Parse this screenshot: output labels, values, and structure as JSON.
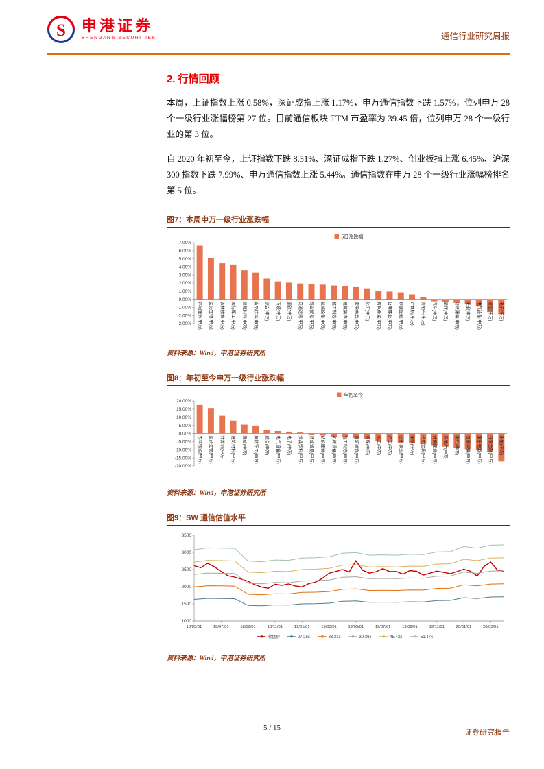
{
  "header": {
    "brand_cn": "申港证券",
    "brand_en": "SHENGANG SECURITIES",
    "report_type": "通信行业研究周报"
  },
  "section_title": "2. 行情回顾",
  "paragraphs": {
    "p1": "本周，上证指数上涨 0.58%，深证成指上涨 1.17%，申万通信指数下跌 1.57%，位列申万 28 个一级行业涨幅榜第 27 位。目前通信板块 TTM 市盈率为 39.45 倍，位列申万 28 个一级行业的第 3 位。",
    "p2": "自 2020 年初至今，上证指数下跌 8.31%、深证成指下跌 1.27%、创业板指上涨 6.45%、沪深 300 指数下跌 7.99%、申万通信指数上涨 5.44%。通信指数在申万 28 个一级行业涨幅榜排名第 5 位。"
  },
  "figures": {
    "f7": {
      "title": "图7：本周申万一级行业涨跌幅",
      "source": "资料来源：Wind，申港证券研究所"
    },
    "f8": {
      "title": "图8：年初至今申万一级行业涨跌幅",
      "source": "资料来源：Wind，申港证券研究所"
    },
    "f9": {
      "title": "图9：SW 通信估值水平",
      "source": "资料来源：Wind，申港证券研究所"
    }
  },
  "footer": {
    "page_number": "5 / 15",
    "report_label": "证券研究报告"
  },
  "colors": {
    "brand_red": "#E60012",
    "rule_orange": "#E36C09",
    "title_maroon": "#8F3A16",
    "section_red": "#E60000",
    "bar_orange": "#E7744E",
    "underline_red": "#C00000"
  },
  "chart_data": [
    {
      "type": "bar",
      "title": "本周申万一级行业涨跌幅",
      "legend": "5日涨跌幅",
      "bar_color": "#E7744E",
      "ylim": [
        -3,
        7
      ],
      "ytick_step": 1,
      "unit": "percent",
      "categories": [
        "休闲服务(申万)",
        "医药生物(申万)",
        "农林牧渔(申万)",
        "国防军工(申万)",
        "建筑材料(申万)",
        "食品饮料(申万)",
        "综合(申万)",
        "传媒(申万)",
        "钢铁(申万)",
        "交通运输(申万)",
        "商业贸易(申万)",
        "机械设备(申万)",
        "轻工制造(申万)",
        "建筑装饰(申万)",
        "家用电器(申万)",
        "化工(申万)",
        "有色金属(申万)",
        "公用事业(申万)",
        "非银金融(申万)",
        "计算机(申万)",
        "房地产(申万)",
        "汽车(申万)",
        "银行(申万)",
        "纺织服装(申万)",
        "采掘(申万)",
        "电气设备(申万)",
        "通信(申万)",
        "电子(申万)"
      ],
      "values": [
        6.62,
        5.1,
        4.45,
        4.3,
        3.6,
        3.3,
        2.55,
        2.2,
        2.05,
        1.95,
        1.9,
        1.8,
        1.7,
        1.6,
        1.5,
        1.35,
        1.05,
        0.95,
        0.85,
        0.6,
        0.3,
        -0.25,
        -0.35,
        -0.45,
        -0.55,
        -0.9,
        -1.57,
        -1.85
      ]
    },
    {
      "type": "bar",
      "title": "年初至今申万一级行业涨跌幅",
      "legend": "年初至今",
      "bar_color": "#E7744E",
      "ylim": [
        -20,
        20
      ],
      "ytick_step": 5,
      "unit": "percent",
      "categories": [
        "农林牧渔(申万)",
        "医药生物(申万)",
        "计算机(申万)",
        "建筑材料(申万)",
        "通信(申万)",
        "国防军工(申万)",
        "综合(申万)",
        "电气设备(申万)",
        "电子(申万)",
        "食品饮料(申万)",
        "商业贸易(申万)",
        "纺织服装(申万)",
        "机械设备(申万)",
        "轻工制造(申万)",
        "建筑装饰(申万)",
        "传媒(申万)",
        "化工(申万)",
        "汽车(申万)",
        "公用事业(申万)",
        "钢铁(申万)",
        "有色金属(申万)",
        "休闲服务(申万)",
        "房地产(申万)",
        "银行(申万)",
        "交通运输(申万)",
        "家用电器(申万)",
        "非银金融(申万)",
        "采掘(申万)"
      ],
      "values": [
        17.5,
        15.3,
        10.9,
        7.9,
        5.44,
        4.9,
        1.9,
        1.5,
        1.1,
        0.6,
        -0.6,
        -1.2,
        -1.9,
        -2.4,
        -2.9,
        -3.4,
        -4.6,
        -5.1,
        -5.6,
        -6.1,
        -6.6,
        -7.6,
        -8.1,
        -9.1,
        -9.6,
        -10.1,
        -11.1,
        -17.2
      ]
    },
    {
      "type": "line",
      "title": "SW通信估值水平",
      "ylim": [
        1000,
        3500
      ],
      "ytick_step": 500,
      "xmax": 23,
      "xtick_positions": [
        0,
        2,
        4,
        6,
        8,
        10,
        12,
        14,
        16,
        18,
        20,
        22
      ],
      "xtick_labels": [
        "18/05/01",
        "18/07/01",
        "18/09/01",
        "18/11/01",
        "19/01/01",
        "19/03/01",
        "19/05/01",
        "19/07/01",
        "19/09/01",
        "19/11/01",
        "20/01/01",
        "20/03/01"
      ],
      "series": [
        {
          "name": "收盘价",
          "color": "#C00000",
          "width": 1.4,
          "x": [
            0,
            0.5,
            1,
            1.5,
            2,
            2.5,
            3,
            3.5,
            4,
            4.5,
            5,
            5.5,
            6,
            6.5,
            7,
            7.5,
            8,
            8.5,
            9,
            9.5,
            10,
            10.5,
            11,
            11.5,
            12,
            12.5,
            13,
            13.5,
            14,
            14.5,
            15,
            15.5,
            16,
            16.5,
            17,
            17.5,
            18,
            18.5,
            19,
            19.5,
            20,
            20.5,
            21,
            21.5,
            22,
            22.5,
            23
          ],
          "values": [
            2610,
            2555,
            2685,
            2580,
            2445,
            2320,
            2280,
            2220,
            2160,
            2060,
            1990,
            1955,
            2075,
            2040,
            2080,
            2020,
            1995,
            2090,
            2135,
            2240,
            2390,
            2445,
            2500,
            2430,
            2755,
            2480,
            2395,
            2440,
            2525,
            2440,
            2445,
            2365,
            2470,
            2450,
            2340,
            2395,
            2455,
            2420,
            2380,
            2440,
            2510,
            2450,
            2310,
            2590,
            2720,
            2480,
            2450
          ]
        },
        {
          "name": "27.25x",
          "color": "#4A7C8C",
          "width": 1,
          "x": [
            0,
            1,
            2,
            3,
            4,
            5,
            6,
            7,
            8,
            9,
            10,
            11,
            12,
            13,
            14,
            15,
            16,
            17,
            18,
            19,
            20,
            21,
            22,
            23
          ],
          "values": [
            1630,
            1660,
            1655,
            1650,
            1455,
            1445,
            1470,
            1465,
            1500,
            1505,
            1520,
            1575,
            1585,
            1545,
            1550,
            1545,
            1560,
            1555,
            1595,
            1600,
            1680,
            1655,
            1700,
            1705
          ]
        },
        {
          "name": "33.31x",
          "color": "#E46C0A",
          "width": 1,
          "x": [
            0,
            1,
            2,
            3,
            4,
            5,
            6,
            7,
            8,
            9,
            10,
            11,
            12,
            13,
            14,
            15,
            16,
            17,
            18,
            19,
            20,
            21,
            22,
            23
          ],
          "values": [
            1993,
            2029,
            2023,
            2017,
            1779,
            1766,
            1797,
            1791,
            1834,
            1840,
            1858,
            1925,
            1937,
            1889,
            1895,
            1889,
            1907,
            1901,
            1950,
            1956,
            2054,
            2023,
            2078,
            2084
          ]
        },
        {
          "name": "39.36x",
          "color": "#A6A6A6",
          "width": 1,
          "x": [
            0,
            1,
            2,
            3,
            4,
            5,
            6,
            7,
            8,
            9,
            10,
            11,
            12,
            13,
            14,
            15,
            16,
            17,
            18,
            19,
            20,
            21,
            22,
            23
          ],
          "values": [
            2354,
            2398,
            2390,
            2383,
            2102,
            2087,
            2123,
            2116,
            2167,
            2174,
            2195,
            2275,
            2289,
            2232,
            2239,
            2232,
            2253,
            2246,
            2304,
            2311,
            2427,
            2390,
            2455,
            2463
          ]
        },
        {
          "name": "45.42x",
          "color": "#D9B25F",
          "width": 1,
          "x": [
            0,
            1,
            2,
            3,
            4,
            5,
            6,
            7,
            8,
            9,
            10,
            11,
            12,
            13,
            14,
            15,
            16,
            17,
            18,
            19,
            20,
            21,
            22,
            23
          ],
          "values": [
            2717,
            2767,
            2759,
            2750,
            2425,
            2409,
            2450,
            2442,
            2500,
            2509,
            2534,
            2625,
            2642,
            2575,
            2584,
            2575,
            2600,
            2592,
            2659,
            2667,
            2800,
            2759,
            2834,
            2842
          ]
        },
        {
          "name": "51.47x",
          "color": "#9DC3A7",
          "width": 1,
          "x": [
            0,
            1,
            2,
            3,
            4,
            5,
            6,
            7,
            8,
            9,
            10,
            11,
            12,
            13,
            14,
            15,
            16,
            17,
            18,
            19,
            20,
            21,
            22,
            23
          ],
          "values": [
            3079,
            3135,
            3126,
            3117,
            2748,
            2729,
            2777,
            2767,
            2833,
            2843,
            2871,
            2975,
            2994,
            2918,
            2928,
            2918,
            2947,
            2937,
            3013,
            3022,
            3173,
            3126,
            3211,
            3220
          ]
        }
      ]
    }
  ]
}
